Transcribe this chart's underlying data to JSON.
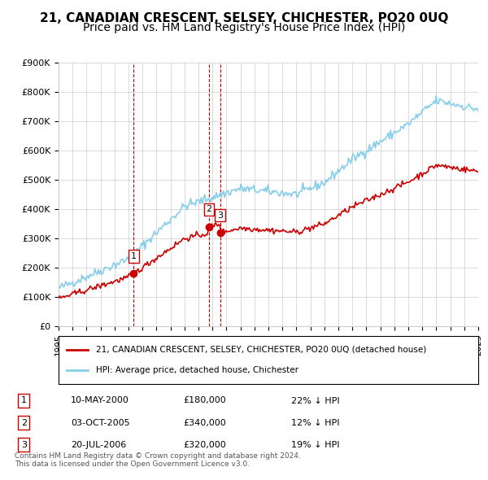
{
  "title": "21, CANADIAN CRESCENT, SELSEY, CHICHESTER, PO20 0UQ",
  "subtitle": "Price paid vs. HM Land Registry's House Price Index (HPI)",
  "title_fontsize": 11,
  "subtitle_fontsize": 10,
  "ylim": [
    0,
    900000
  ],
  "yticks": [
    0,
    100000,
    200000,
    300000,
    400000,
    500000,
    600000,
    700000,
    800000,
    900000
  ],
  "ytick_labels": [
    "£0",
    "£100K",
    "£200K",
    "£300K",
    "£400K",
    "£500K",
    "£600K",
    "£700K",
    "£800K",
    "£900K"
  ],
  "xtick_years": [
    1995,
    1996,
    1997,
    1998,
    1999,
    2000,
    2001,
    2002,
    2003,
    2004,
    2005,
    2006,
    2007,
    2008,
    2009,
    2010,
    2011,
    2012,
    2013,
    2014,
    2015,
    2016,
    2017,
    2018,
    2019,
    2020,
    2021,
    2022,
    2023,
    2024,
    2025
  ],
  "hpi_color": "#87CEEB",
  "sale_color": "#CC0000",
  "marker_color": "#CC0000",
  "vline_color": "#CC0000",
  "grid_color": "#CCCCCC",
  "bg_color": "#FFFFFF",
  "legend_box_color": "#000000",
  "sales": [
    {
      "label": "1",
      "year": 2000.37,
      "price": 180000,
      "note": "10-MAY-2000",
      "pct": "22% ↓ HPI"
    },
    {
      "label": "2",
      "year": 2005.75,
      "price": 340000,
      "note": "03-OCT-2005",
      "pct": "12% ↓ HPI"
    },
    {
      "label": "3",
      "year": 2006.55,
      "price": 320000,
      "note": "20-JUL-2006",
      "pct": "19% ↓ HPI"
    }
  ],
  "footer": "Contains HM Land Registry data © Crown copyright and database right 2024.\nThis data is licensed under the Open Government Licence v3.0.",
  "legend_line1": "21, CANADIAN CRESCENT, SELSEY, CHICHESTER, PO20 0UQ (detached house)",
  "legend_line2": "HPI: Average price, detached house, Chichester",
  "table_rows": [
    {
      "num": "1",
      "date": "10-MAY-2000",
      "price": "£180,000",
      "pct": "22% ↓ HPI"
    },
    {
      "num": "2",
      "date": "03-OCT-2005",
      "price": "£340,000",
      "pct": "12% ↓ HPI"
    },
    {
      "num": "3",
      "date": "20-JUL-2006",
      "price": "£320,000",
      "pct": "19% ↓ HPI"
    }
  ]
}
